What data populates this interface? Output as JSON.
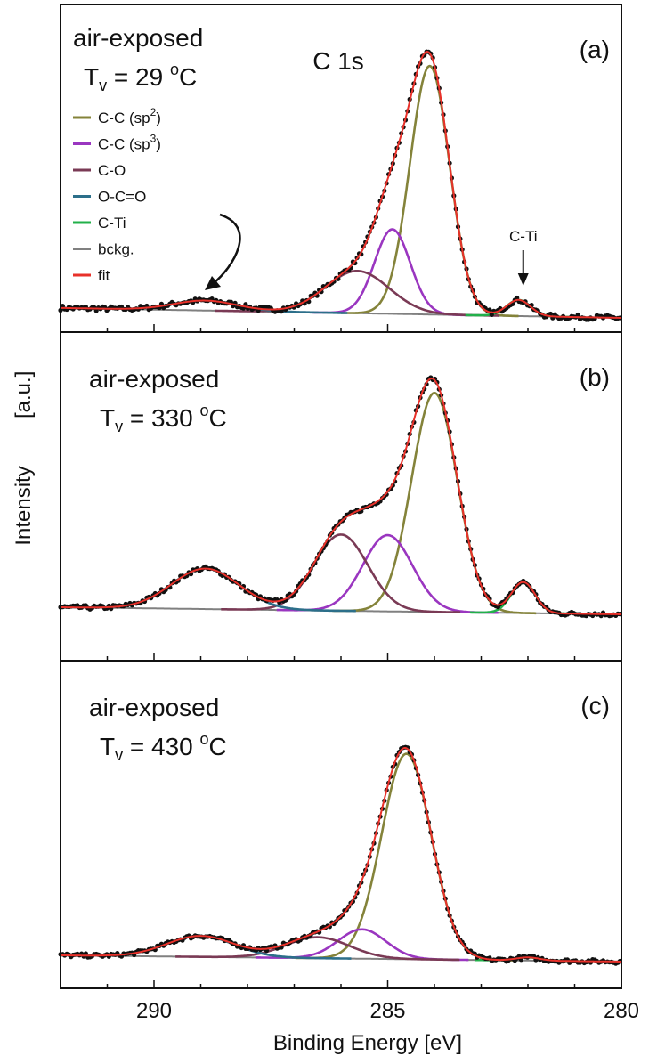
{
  "chart_data": {
    "type": "line",
    "xlabel": "Binding Energy [eV]",
    "ylabel": "Intensity",
    "ylabel_unit": "[a.u.]",
    "xlim": [
      292,
      280
    ],
    "x_reversed": true,
    "xticks": [
      290,
      285,
      280
    ],
    "title": "C 1s",
    "legend": {
      "placement": "top-left of panel (a)",
      "entries": [
        {
          "label": "C-C (sp",
          "sup": "2",
          "suffix": ")",
          "color": "#84833a"
        },
        {
          "label": "C-C (sp",
          "sup": "3",
          "suffix": ")",
          "color": "#9a36c0"
        },
        {
          "label": "C-O",
          "sup": "",
          "suffix": "",
          "color": "#7a3a55"
        },
        {
          "label": "O-C=O",
          "sup": "",
          "suffix": "",
          "color": "#2c6f8a"
        },
        {
          "label": "C-Ti",
          "sup": "",
          "suffix": "",
          "color": "#22b04a"
        },
        {
          "label": "bckg.",
          "sup": "",
          "suffix": "",
          "color": "#808080"
        },
        {
          "label": "fit",
          "sup": "",
          "suffix": "",
          "color": "#e8312a"
        }
      ]
    },
    "panels": [
      {
        "id": "a",
        "letter": "(a)",
        "condition": "air-exposed",
        "temp_label": "T",
        "temp_sub": "v",
        "temp_value": " = 29 ",
        "temp_unit_sup": "o",
        "temp_unit": "C",
        "annotation": "C-Ti",
        "ylim": [
          0,
          1.1
        ],
        "background": [
          0.04,
          0.0
        ],
        "components": [
          {
            "name": "C-C (sp2)",
            "center": 284.1,
            "height": 1.0,
            "fwhm": 1.0,
            "color": "#84833a"
          },
          {
            "name": "C-C (sp3)",
            "center": 284.9,
            "height": 0.34,
            "fwhm": 0.9,
            "color": "#9a36c0"
          },
          {
            "name": "C-O",
            "center": 285.65,
            "height": 0.17,
            "fwhm": 1.6,
            "color": "#7a3a55"
          },
          {
            "name": "O-C=O",
            "center": 288.9,
            "height": 0.04,
            "fwhm": 1.6,
            "color": "#2c6f8a"
          },
          {
            "name": "C-Ti",
            "center": 282.2,
            "height": 0.065,
            "fwhm": 0.6,
            "color": "#22b04a"
          }
        ]
      },
      {
        "id": "b",
        "letter": "(b)",
        "condition": "air-exposed",
        "temp_label": "T",
        "temp_sub": "v",
        "temp_value": " = 330 ",
        "temp_unit_sup": "o",
        "temp_unit": "C",
        "annotation": "",
        "ylim": [
          0,
          1.1
        ],
        "background": [
          0.03,
          0.0
        ],
        "components": [
          {
            "name": "C-C (sp2)",
            "center": 284.0,
            "height": 0.92,
            "fwhm": 1.15,
            "color": "#84833a"
          },
          {
            "name": "C-C (sp3)",
            "center": 285.0,
            "height": 0.32,
            "fwhm": 1.25,
            "color": "#9a36c0"
          },
          {
            "name": "C-O",
            "center": 286.0,
            "height": 0.32,
            "fwhm": 1.35,
            "color": "#7a3a55"
          },
          {
            "name": "O-C=O",
            "center": 288.9,
            "height": 0.17,
            "fwhm": 1.7,
            "color": "#2c6f8a"
          },
          {
            "name": "C-Ti",
            "center": 282.1,
            "height": 0.13,
            "fwhm": 0.6,
            "color": "#22b04a"
          }
        ]
      },
      {
        "id": "c",
        "letter": "(c)",
        "condition": "air-exposed",
        "temp_label": "T",
        "temp_sub": "v",
        "temp_value": " = 430 ",
        "temp_unit_sup": "o",
        "temp_unit": "C",
        "annotation": "",
        "ylim": [
          0,
          1.1
        ],
        "background": [
          0.03,
          0.0
        ],
        "components": [
          {
            "name": "C-C (sp2)",
            "center": 284.6,
            "height": 0.98,
            "fwhm": 1.25,
            "color": "#84833a"
          },
          {
            "name": "C-C (sp3)",
            "center": 285.55,
            "height": 0.14,
            "fwhm": 1.2,
            "color": "#9a36c0"
          },
          {
            "name": "C-O",
            "center": 286.5,
            "height": 0.1,
            "fwhm": 1.6,
            "color": "#7a3a55"
          },
          {
            "name": "O-C=O",
            "center": 289.0,
            "height": 0.1,
            "fwhm": 1.7,
            "color": "#2c6f8a"
          },
          {
            "name": "C-Ti",
            "center": 282.0,
            "height": 0.015,
            "fwhm": 0.6,
            "color": "#22b04a"
          }
        ]
      }
    ]
  }
}
